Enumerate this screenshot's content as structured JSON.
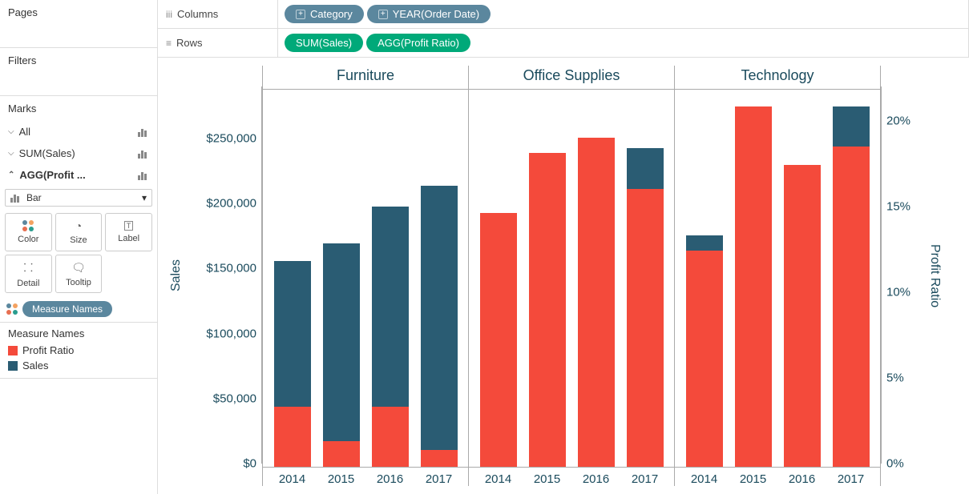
{
  "sidebar": {
    "pages_label": "Pages",
    "filters_label": "Filters",
    "marks_label": "Marks",
    "all_label": "All",
    "sum_sales_label": "SUM(Sales)",
    "agg_profit_label": "AGG(Profit ...",
    "mark_type": "Bar",
    "mark_cards": {
      "color": "Color",
      "size": "Size",
      "label": "Label",
      "detail": "Detail",
      "tooltip": "Tooltip"
    },
    "measure_names_pill": "Measure Names",
    "legend_title": "Measure Names",
    "legend_items": [
      {
        "label": "Profit Ratio",
        "color": "#f44a3b"
      },
      {
        "label": "Sales",
        "color": "#2a5c73"
      }
    ]
  },
  "shelves": {
    "columns_label": "Columns",
    "rows_label": "Rows",
    "columns_pills": [
      {
        "text": "Category",
        "plus": true,
        "cls": "blue"
      },
      {
        "text": "YEAR(Order Date)",
        "plus": true,
        "cls": "blue"
      }
    ],
    "rows_pills": [
      {
        "text": "SUM(Sales)",
        "plus": false,
        "cls": "green"
      },
      {
        "text": "AGG(Profit Ratio)",
        "plus": false,
        "cls": "green"
      }
    ]
  },
  "chart": {
    "left_axis_label": "Sales",
    "right_axis_label": "Profit Ratio",
    "left_ticks": [
      {
        "label": "$0",
        "pos": 0
      },
      {
        "label": "$50,000",
        "pos": 50000
      },
      {
        "label": "$100,000",
        "pos": 100000
      },
      {
        "label": "$150,000",
        "pos": 150000
      },
      {
        "label": "$200,000",
        "pos": 200000
      },
      {
        "label": "$250,000",
        "pos": 250000
      }
    ],
    "right_ticks": [
      {
        "label": "0%",
        "pos": 0
      },
      {
        "label": "5%",
        "pos": 5
      },
      {
        "label": "10%",
        "pos": 10
      },
      {
        "label": "15%",
        "pos": 15
      },
      {
        "label": "20%",
        "pos": 20
      }
    ],
    "y_max_sales": 290000,
    "y_max_ratio": 22,
    "categories": [
      {
        "name": "Furniture",
        "bars": [
          {
            "year": "2014",
            "profit_ratio": 3.5,
            "sales": 158000
          },
          {
            "year": "2015",
            "profit_ratio": 1.5,
            "sales": 172000
          },
          {
            "year": "2016",
            "profit_ratio": 3.5,
            "sales": 200000
          },
          {
            "year": "2017",
            "profit_ratio": 1.0,
            "sales": 216000
          }
        ]
      },
      {
        "name": "Office Supplies",
        "bars": [
          {
            "year": "2014",
            "profit_ratio": 14.8,
            "sales": 0
          },
          {
            "year": "2015",
            "profit_ratio": 18.3,
            "sales": 0
          },
          {
            "year": "2016",
            "profit_ratio": 19.2,
            "sales": 0
          },
          {
            "year": "2017",
            "profit_ratio": 16.2,
            "sales": 245000
          }
        ]
      },
      {
        "name": "Technology",
        "bars": [
          {
            "year": "2014",
            "profit_ratio": 12.6,
            "sales": 178000
          },
          {
            "year": "2015",
            "profit_ratio": 21.0,
            "sales": 0
          },
          {
            "year": "2016",
            "profit_ratio": 17.6,
            "sales": 0
          },
          {
            "year": "2017",
            "profit_ratio": 18.7,
            "sales": 277000
          }
        ]
      }
    ],
    "colors": {
      "profit_ratio": "#f44a3b",
      "sales": "#2a5c73"
    }
  }
}
